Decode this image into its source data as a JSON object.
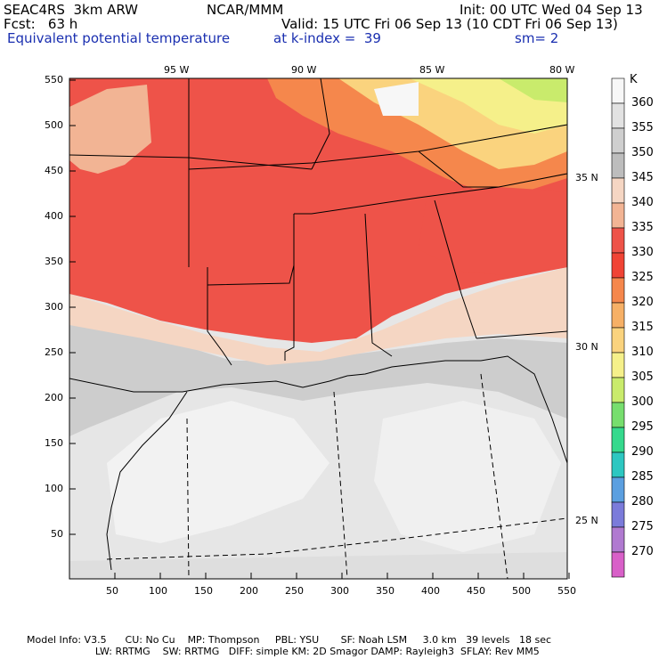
{
  "header": {
    "model": "SEAC4RS  3km ARW",
    "org": "NCAR/MMM",
    "init": "Init: 00 UTC Wed 04 Sep 13",
    "fcst": "Fcst:   63 h",
    "valid": "Valid: 15 UTC Fri 06 Sep 13 (10 CDT Fri 06 Sep 13)",
    "field": "Equivalent potential temperature",
    "level": "at k-index =  39",
    "smooth": "sm= 2"
  },
  "axes": {
    "x_ticks": [
      "50",
      "100",
      "150",
      "200",
      "250",
      "300",
      "350",
      "400",
      "450",
      "500",
      "550"
    ],
    "y_ticks": [
      "550",
      "500",
      "450",
      "400",
      "350",
      "300",
      "250",
      "200",
      "150",
      "100",
      "50"
    ],
    "lon_labels": [
      "95 W",
      "90 W",
      "85 W",
      "80 W"
    ],
    "lat_labels": [
      "35 N",
      "30 N",
      "25 N"
    ]
  },
  "colorbar": {
    "unit": "K",
    "levels": [
      {
        "value": "360",
        "color": "#f7f7f7"
      },
      {
        "value": "355",
        "color": "#e2e2e2"
      },
      {
        "value": "350",
        "color": "#cfcfcf"
      },
      {
        "value": "345",
        "color": "#bdbdbd"
      },
      {
        "value": "340",
        "color": "#f5d6c3"
      },
      {
        "value": "335",
        "color": "#f2b494"
      },
      {
        "value": "330",
        "color": "#ee5349"
      },
      {
        "value": "325",
        "color": "#f04435"
      },
      {
        "value": "320",
        "color": "#f5874c"
      },
      {
        "value": "315",
        "color": "#f6b066"
      },
      {
        "value": "310",
        "color": "#fad37e"
      },
      {
        "value": "305",
        "color": "#f5f08a"
      },
      {
        "value": "300",
        "color": "#c9eb6c"
      },
      {
        "value": "295",
        "color": "#77de6e"
      },
      {
        "value": "290",
        "color": "#35d98d"
      },
      {
        "value": "285",
        "color": "#2dc7c1"
      },
      {
        "value": "280",
        "color": "#5b9fe0"
      },
      {
        "value": "275",
        "color": "#7b7bda"
      },
      {
        "value": "270",
        "color": "#b07ad0"
      },
      {
        "value": "",
        "color": "#d860c8"
      }
    ]
  },
  "footer": {
    "line1": "Model Info: V3.5      CU: No Cu    MP: Thompson     PBL: YSU       SF: Noah LSM     3.0 km   39 levels   18 sec",
    "line2": "                      LW: RRTMG    SW: RRTMG   DIFF: simple KM: 2D Smagor DAMP: Rayleigh3  SFLAY: Rev MM5"
  },
  "colors": {
    "warm_red": "#ee5349",
    "salmon": "#f2b494",
    "peach": "#f5d6c3",
    "gray_mid": "#cfcfcf",
    "gray_light": "#e2e2e2",
    "white": "#f7f7f7",
    "yellow": "#f5f08a",
    "orange": "#f5874c"
  }
}
